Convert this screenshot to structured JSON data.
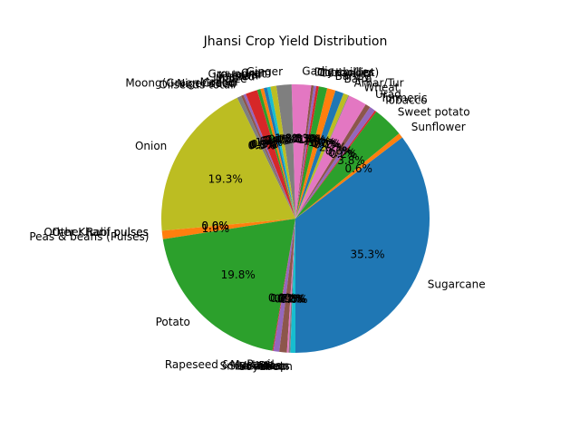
{
  "chart_data": {
    "type": "pie",
    "title": "Jhansi Crop Yield Distribution",
    "start_angle_deg": 270,
    "direction": "counterclockwise",
    "percent_format": "one_decimal",
    "slices": [
      {
        "label": "Sugarcane",
        "value": 34.8,
        "color": "#1f77b4"
      },
      {
        "label": "Sunflower",
        "value": 0.6,
        "color": "#ff7f0e"
      },
      {
        "label": "Sweet potato",
        "value": 3.7,
        "color": "#2ca02c"
      },
      {
        "label": "Tobacco",
        "value": 0.2,
        "color": "#d62728"
      },
      {
        "label": "Turmeric",
        "value": 0.7,
        "color": "#9467bd"
      },
      {
        "label": "Urad",
        "value": 0.6,
        "color": "#8c564b"
      },
      {
        "label": "Wheat",
        "value": 2.2,
        "color": "#e377c2"
      },
      {
        "label": "Arhar/Tur",
        "value": 0.1,
        "color": "#7f7f7f"
      },
      {
        "label": "",
        "value": 0.6,
        "color": "#bcbd22"
      },
      {
        "label": "",
        "value": 0.0,
        "color": "#17becf"
      },
      {
        "label": "Bajra",
        "value": 1.0,
        "color": "#1f77b4"
      },
      {
        "label": "Barley",
        "value": 1.0,
        "color": "#ff7f0e"
      },
      {
        "label": "",
        "value": 1.0,
        "color": "#2ca02c"
      },
      {
        "label": "Coriander",
        "value": 0.3,
        "color": "#d62728"
      },
      {
        "label": "Cotton(lint)",
        "value": 0.3,
        "color": "#9467bd"
      },
      {
        "label": "Dry chillies",
        "value": 0.3,
        "color": "#8c564b"
      },
      {
        "label": "Garlic",
        "value": 2.3,
        "color": "#e377c2"
      },
      {
        "label": "Ginger",
        "value": 1.8,
        "color": "#7f7f7f"
      },
      {
        "label": "Gram",
        "value": 0.7,
        "color": "#bcbd22"
      },
      {
        "label": "Groundnut",
        "value": 0.4,
        "color": "#17becf"
      },
      {
        "label": "Jowar",
        "value": 0.4,
        "color": "#1f77b4"
      },
      {
        "label": "Khesari",
        "value": 0.4,
        "color": "#ff7f0e"
      },
      {
        "label": "Linseed",
        "value": 0.4,
        "color": "#2ca02c"
      },
      {
        "label": "Maize",
        "value": 1.4,
        "color": "#d62728"
      },
      {
        "label": "Masoor",
        "value": 0.3,
        "color": "#9467bd"
      },
      {
        "label": "Moong(Green Gram)",
        "value": 0.3,
        "color": "#8c564b"
      },
      {
        "label": "Niger seed",
        "value": 0.0,
        "color": "#e377c2"
      },
      {
        "label": "Oilseeds total",
        "value": 0.5,
        "color": "#7f7f7f"
      },
      {
        "label": "Onion",
        "value": 19.0,
        "color": "#bcbd22"
      },
      {
        "label": "Other Kharif pulses",
        "value": 0.0,
        "color": "#17becf"
      },
      {
        "label": "Other Rabi pulses",
        "value": 0.0,
        "color": "#1f77b4"
      },
      {
        "label": "Peas & beans (Pulses)",
        "value": 1.0,
        "color": "#ff7f0e"
      },
      {
        "label": "Potato",
        "value": 19.5,
        "color": "#2ca02c"
      },
      {
        "label": "Ragi",
        "value": 0.1,
        "color": "#d62728"
      },
      {
        "label": "Rapeseed &Mustard",
        "value": 0.7,
        "color": "#9467bd"
      },
      {
        "label": "Rice",
        "value": 0.9,
        "color": "#8c564b"
      },
      {
        "label": "Sannhamp",
        "value": 0.2,
        "color": "#e377c2"
      },
      {
        "label": "Sesamum",
        "value": 0.2,
        "color": "#7f7f7f"
      },
      {
        "label": "Small millets",
        "value": 0.0,
        "color": "#bcbd22"
      },
      {
        "label": "Soyabean",
        "value": 0.6,
        "color": "#17becf"
      }
    ]
  }
}
